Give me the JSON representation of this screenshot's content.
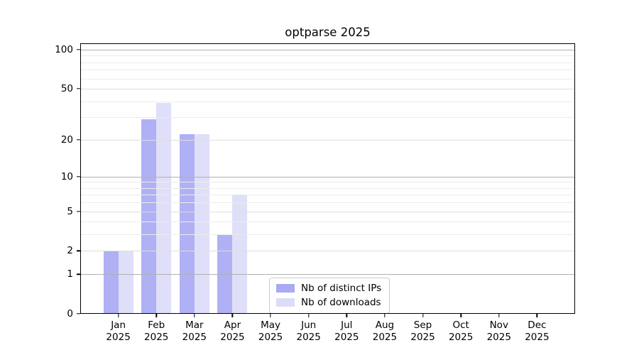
{
  "title": "optparse 2025",
  "legend": {
    "items": [
      {
        "label": "Nb of distinct IPs",
        "color": "#a9a9f4"
      },
      {
        "label": "Nb of downloads",
        "color": "#dcdcf9"
      }
    ]
  },
  "chart_data": {
    "type": "bar",
    "title": "optparse 2025",
    "categories": [
      "Jan",
      "Feb",
      "Mar",
      "Apr",
      "May",
      "Jun",
      "Jul",
      "Aug",
      "Sep",
      "Oct",
      "Nov",
      "Dec"
    ],
    "year": "2025",
    "series": [
      {
        "name": "Nb of distinct IPs",
        "color": "#a9a9f4",
        "values": [
          2,
          29,
          22,
          3,
          0,
          0,
          0,
          0,
          0,
          0,
          0,
          0
        ]
      },
      {
        "name": "Nb of downloads",
        "color": "#dcdcf9",
        "values": [
          2,
          39,
          22,
          7,
          0,
          0,
          0,
          0,
          0,
          0,
          0,
          0
        ]
      }
    ],
    "xlabel": "",
    "ylabel": "",
    "yscale": "log1p",
    "ylim": [
      0,
      100
    ],
    "yticks": [
      {
        "v": 0,
        "label": "0",
        "grid": "none"
      },
      {
        "v": 1,
        "label": "1",
        "grid": "major"
      },
      {
        "v": 2,
        "label": "2",
        "grid": "mid"
      },
      {
        "v": 5,
        "label": "5",
        "grid": "mid"
      },
      {
        "v": 10,
        "label": "10",
        "grid": "major"
      },
      {
        "v": 20,
        "label": "20",
        "grid": "mid"
      },
      {
        "v": 50,
        "label": "50",
        "grid": "mid"
      },
      {
        "v": 100,
        "label": "100",
        "grid": "major"
      }
    ],
    "minor_gridlines": [
      3,
      4,
      6,
      7,
      8,
      9,
      30,
      40,
      60,
      70,
      80,
      90
    ],
    "grid": true,
    "legend_position": "inside lower-center-left"
  }
}
